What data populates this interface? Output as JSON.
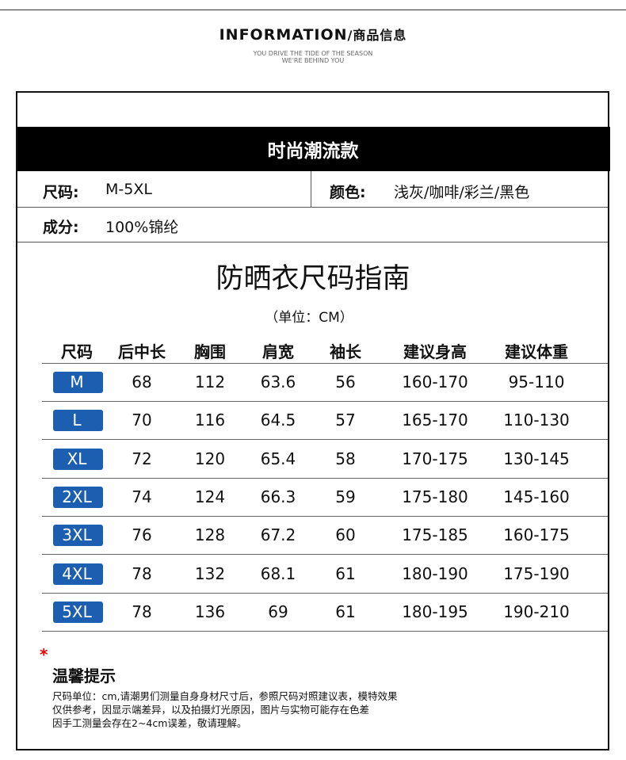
{
  "header": {
    "title_en": "INFORMATION",
    "title_cn": "/商品信息",
    "subtitle": [
      "YOU DRIVE THE TIDE OF THE SEASON",
      "WE'RE BEHIND YOU"
    ]
  },
  "banner": "时尚潮流款",
  "info": {
    "size_label": "尺码:",
    "size_value": "M-5XL",
    "color_label": "颜色:",
    "color_value": "浅灰/咖啡/彩兰/黑色",
    "material_label": "成分:",
    "material_value": "100%锦纶"
  },
  "guide": {
    "title": "防晒衣尺码指南",
    "unit": "（单位：CM）"
  },
  "table": {
    "headers": [
      "尺码",
      "后中长",
      "胸围",
      "肩宽",
      "袖长",
      "建议身高",
      "建议体重"
    ],
    "rows": [
      [
        "M",
        "68",
        "112",
        "63.6",
        "56",
        "160-170",
        "95-110"
      ],
      [
        "L",
        "70",
        "116",
        "64.5",
        "57",
        "165-170",
        "110-130"
      ],
      [
        "XL",
        "72",
        "120",
        "65.4",
        "58",
        "170-175",
        "130-145"
      ],
      [
        "2XL",
        "74",
        "124",
        "66.3",
        "59",
        "175-180",
        "145-160"
      ],
      [
        "3XL",
        "76",
        "128",
        "67.2",
        "60",
        "175-185",
        "160-175"
      ],
      [
        "4XL",
        "78",
        "132",
        "68.1",
        "61",
        "180-190",
        "175-190"
      ],
      [
        "5XL",
        "78",
        "136",
        "69",
        "61",
        "180-195",
        "190-210"
      ]
    ]
  },
  "tips": {
    "mark": "*",
    "title": "温馨提示",
    "lines": [
      "尺码单位：cm,请潮男们测量自身身材尺寸后，参照尺码对照建议表，模特效果",
      "仅供参考，因显示端差异，以及拍摄灯光原因，图片与实物可能存在色差",
      "因手工测量会存在2~4cm误差，敬请理解。"
    ]
  }
}
